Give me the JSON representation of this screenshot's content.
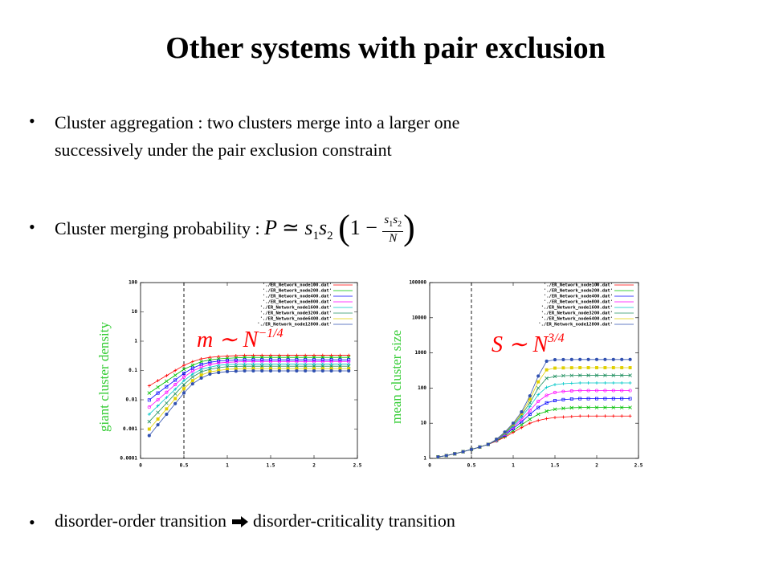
{
  "title": "Other systems with pair exclusion",
  "bullets": [
    {
      "text": "Cluster aggregation : two clusters merge into a larger one",
      "text2": "successively under the pair exclusion constraint"
    },
    {
      "text": "Cluster merging probability :"
    },
    {
      "text": "disorder-order transition",
      "text2": "disorder-criticality transition"
    }
  ],
  "formula": {
    "P": "P",
    "rel": "≃",
    "s": "s",
    "one": "1",
    "two": "2",
    "open": "(",
    "close": ")",
    "minus": "1 −",
    "N": "N"
  },
  "chart_data": [
    {
      "type": "line",
      "ylabel": "giant cluster density",
      "ylog": true,
      "legend": "upper right",
      "annotation": {
        "base": "m ∼ N",
        "exp": "−1/4"
      },
      "vline": 0.5,
      "xlim": [
        0,
        2.5
      ],
      "xticks": [
        0,
        0.5,
        1,
        1.5,
        2,
        2.5
      ],
      "ylim": [
        0.0001,
        100
      ],
      "yticks": [
        0.0001,
        0.001,
        0.01,
        0.1,
        1,
        10,
        100
      ],
      "x": [
        0.1,
        0.2,
        0.3,
        0.4,
        0.5,
        0.6,
        0.7,
        0.8,
        0.9,
        1.0,
        1.1,
        1.2,
        1.3,
        1.4,
        1.5,
        1.6,
        1.7,
        1.8,
        1.9,
        2.0,
        2.1,
        2.2,
        2.3,
        2.4
      ],
      "series": [
        {
          "name": "'./ER_Network_node100.dat'",
          "color": "#ff0000",
          "values": [
            0.03,
            0.045,
            0.067,
            0.1,
            0.15,
            0.2,
            0.25,
            0.28,
            0.3,
            0.31,
            0.32,
            0.33,
            0.33,
            0.33,
            0.33,
            0.33,
            0.33,
            0.33,
            0.33,
            0.33,
            0.33,
            0.33,
            0.33,
            0.33
          ]
        },
        {
          "name": "'./ER_Network_node200.dat'",
          "color": "#00c000",
          "values": [
            0.017,
            0.027,
            0.043,
            0.069,
            0.11,
            0.15,
            0.2,
            0.23,
            0.25,
            0.26,
            0.27,
            0.28,
            0.28,
            0.28,
            0.28,
            0.28,
            0.28,
            0.28,
            0.28,
            0.28,
            0.28,
            0.28,
            0.28,
            0.28
          ]
        },
        {
          "name": "'./ER_Network_node400.dat'",
          "color": "#0000ff",
          "values": [
            0.0098,
            0.017,
            0.028,
            0.047,
            0.08,
            0.12,
            0.16,
            0.19,
            0.21,
            0.22,
            0.225,
            0.23,
            0.23,
            0.23,
            0.23,
            0.23,
            0.23,
            0.23,
            0.23,
            0.23,
            0.23,
            0.23,
            0.23,
            0.23
          ]
        },
        {
          "name": "'./ER_Network_node800.dat'",
          "color": "#ff00ff",
          "values": [
            0.0056,
            0.01,
            0.018,
            0.033,
            0.06,
            0.095,
            0.13,
            0.16,
            0.18,
            0.19,
            0.195,
            0.2,
            0.2,
            0.2,
            0.2,
            0.2,
            0.2,
            0.2,
            0.2,
            0.2,
            0.2,
            0.2,
            0.2,
            0.2
          ]
        },
        {
          "name": "'./ER_Network_node1600.dat'",
          "color": "#00c8c8",
          "values": [
            0.0032,
            0.0062,
            0.012,
            0.023,
            0.045,
            0.075,
            0.11,
            0.13,
            0.15,
            0.16,
            0.162,
            0.165,
            0.165,
            0.165,
            0.165,
            0.165,
            0.165,
            0.165,
            0.165,
            0.165,
            0.165,
            0.165,
            0.165,
            0.165
          ]
        },
        {
          "name": "'./ER_Network_node3200.dat'",
          "color": "#209060",
          "values": [
            0.0018,
            0.0037,
            0.0077,
            0.016,
            0.033,
            0.06,
            0.09,
            0.11,
            0.125,
            0.135,
            0.138,
            0.14,
            0.14,
            0.14,
            0.14,
            0.14,
            0.14,
            0.14,
            0.14,
            0.14,
            0.14,
            0.14,
            0.14,
            0.14
          ]
        },
        {
          "name": "'./ER_Network_node6400.dat'",
          "color": "#e0d000",
          "values": [
            0.001,
            0.0022,
            0.0049,
            0.011,
            0.024,
            0.045,
            0.07,
            0.09,
            0.1,
            0.11,
            0.113,
            0.115,
            0.115,
            0.115,
            0.115,
            0.115,
            0.115,
            0.115,
            0.115,
            0.115,
            0.115,
            0.115,
            0.115,
            0.115
          ]
        },
        {
          "name": "'./ER_Network_node12800.dat'",
          "color": "#3050b0",
          "values": [
            0.0006,
            0.0014,
            0.0032,
            0.0074,
            0.017,
            0.035,
            0.055,
            0.075,
            0.085,
            0.092,
            0.095,
            0.097,
            0.097,
            0.097,
            0.097,
            0.097,
            0.097,
            0.097,
            0.097,
            0.097,
            0.097,
            0.097,
            0.097,
            0.097
          ]
        }
      ]
    },
    {
      "type": "line",
      "ylabel": "mean cluster size",
      "ylog": true,
      "legend": "upper right",
      "annotation": {
        "base": "S ∼ N",
        "exp": "3/4"
      },
      "vline": 0.5,
      "xlim": [
        0,
        2.5
      ],
      "xticks": [
        0,
        0.5,
        1,
        1.5,
        2,
        2.5
      ],
      "ylim": [
        1,
        100000
      ],
      "yticks": [
        1,
        10,
        100,
        1000,
        10000,
        100000
      ],
      "x": [
        0.1,
        0.2,
        0.3,
        0.4,
        0.5,
        0.6,
        0.7,
        0.8,
        0.9,
        1.0,
        1.1,
        1.2,
        1.3,
        1.4,
        1.5,
        1.6,
        1.7,
        1.8,
        1.9,
        2.0,
        2.1,
        2.2,
        2.3,
        2.4
      ],
      "series": [
        {
          "name": "'./ER_Network_node100.dat'",
          "color": "#ff0000",
          "values": [
            1.1,
            1.2,
            1.35,
            1.55,
            1.8,
            2.1,
            2.5,
            3.1,
            4,
            5.5,
            7.5,
            10,
            12,
            13.5,
            14.5,
            15,
            15.5,
            16,
            16,
            16,
            16,
            16,
            16,
            16
          ]
        },
        {
          "name": "'./ER_Network_node200.dat'",
          "color": "#00c000",
          "values": [
            1.1,
            1.2,
            1.35,
            1.55,
            1.8,
            2.1,
            2.5,
            3.2,
            4.3,
            6.2,
            9,
            13,
            18,
            22,
            25,
            26.5,
            27.5,
            28,
            28,
            28,
            28,
            28,
            28,
            28
          ]
        },
        {
          "name": "'./ER_Network_node400.dat'",
          "color": "#0000ff",
          "values": [
            1.1,
            1.2,
            1.35,
            1.55,
            1.8,
            2.1,
            2.5,
            3.3,
            4.6,
            7,
            11,
            18,
            28,
            38,
            44,
            47,
            49,
            50,
            50,
            50,
            50,
            50,
            50,
            50
          ]
        },
        {
          "name": "'./ER_Network_node800.dat'",
          "color": "#ff00ff",
          "values": [
            1.1,
            1.2,
            1.35,
            1.55,
            1.8,
            2.1,
            2.5,
            3.3,
            4.8,
            7.6,
            13,
            23,
            42,
            62,
            75,
            80,
            83,
            85,
            85,
            85,
            85,
            85,
            85,
            85
          ]
        },
        {
          "name": "'./ER_Network_node1600.dat'",
          "color": "#00c8c8",
          "values": [
            1.1,
            1.2,
            1.35,
            1.55,
            1.8,
            2.1,
            2.5,
            3.4,
            5,
            8.2,
            15,
            30,
            65,
            105,
            125,
            133,
            137,
            140,
            140,
            140,
            140,
            140,
            140,
            140
          ]
        },
        {
          "name": "'./ER_Network_node3200.dat'",
          "color": "#209060",
          "values": [
            1.1,
            1.2,
            1.35,
            1.55,
            1.8,
            2.1,
            2.5,
            3.4,
            5.2,
            8.8,
            17,
            38,
            100,
            190,
            215,
            225,
            228,
            230,
            230,
            230,
            230,
            230,
            230,
            230
          ]
        },
        {
          "name": "'./ER_Network_node6400.dat'",
          "color": "#e0d000",
          "values": [
            1.1,
            1.2,
            1.35,
            1.55,
            1.8,
            2.1,
            2.5,
            3.5,
            5.4,
            9.4,
            19,
            48,
            150,
            330,
            370,
            375,
            378,
            380,
            380,
            380,
            380,
            380,
            380,
            380
          ]
        },
        {
          "name": "'./ER_Network_node12800.dat'",
          "color": "#3050b0",
          "values": [
            1.1,
            1.2,
            1.35,
            1.55,
            1.8,
            2.1,
            2.5,
            3.5,
            5.6,
            10,
            21,
            60,
            220,
            580,
            640,
            645,
            648,
            650,
            650,
            650,
            650,
            650,
            650,
            650
          ]
        }
      ]
    }
  ]
}
